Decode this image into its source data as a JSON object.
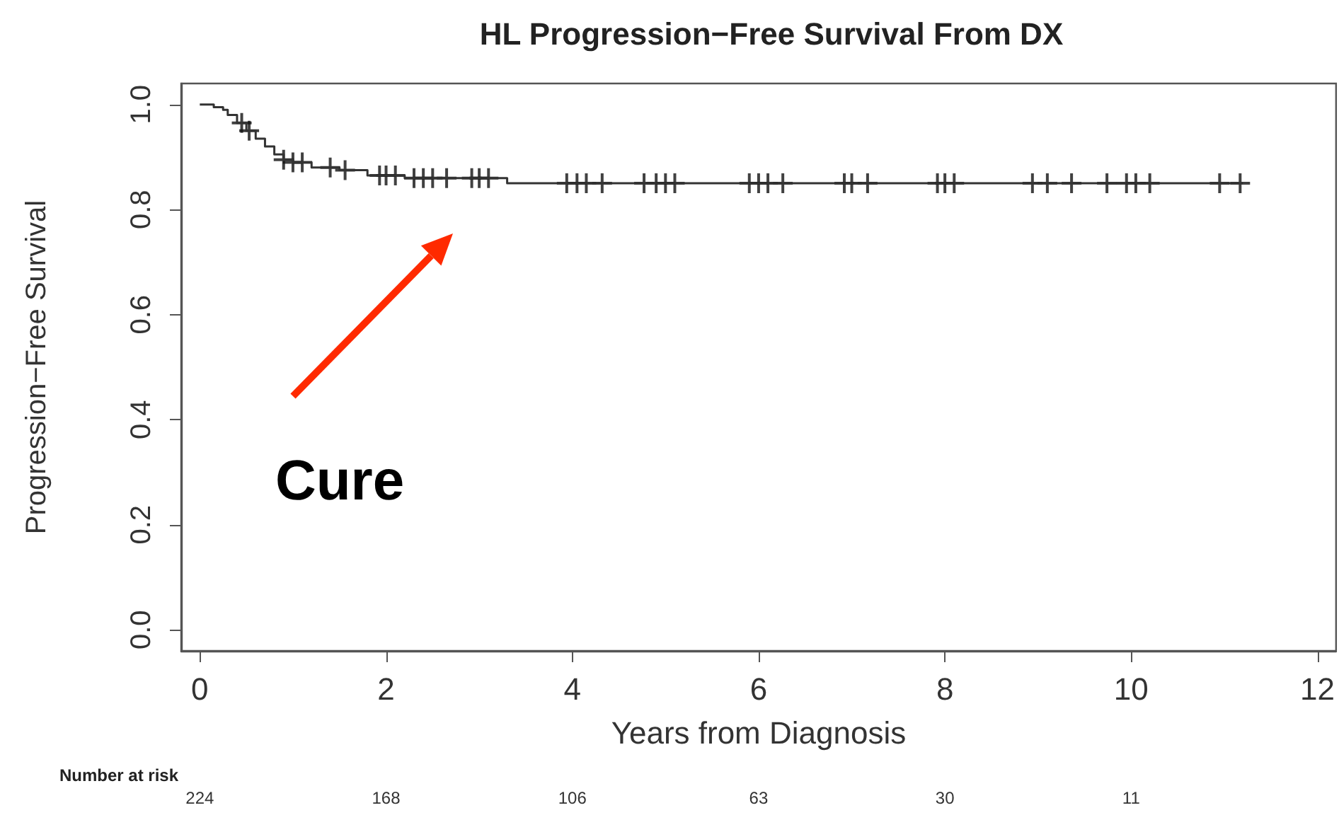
{
  "chart_data": {
    "type": "step",
    "title": "HL Progression−Free Survival From DX",
    "xlabel": "Years from Diagnosis",
    "ylabel": "Progression−Free Survival",
    "xlim": [
      -0.2,
      12.2
    ],
    "xticks": [
      0,
      2,
      4,
      6,
      8,
      10,
      12
    ],
    "ylim": [
      -0.04,
      1.04
    ],
    "yticks": [
      {
        "value": 0,
        "label": "0.0"
      },
      0.2,
      0.4,
      0.6,
      0.8,
      {
        "value": 1,
        "label": "1.0"
      }
    ],
    "series": [
      {
        "color": "#333333",
        "x": [
          0,
          0.15,
          0.25,
          0.3,
          0.4,
          0.5,
          0.6,
          0.7,
          0.8,
          0.9,
          1.0,
          1.2,
          1.5,
          1.8,
          2.2,
          3.3,
          11.2
        ],
        "values": [
          1,
          0.995,
          0.99,
          0.98,
          0.965,
          0.95,
          0.935,
          0.92,
          0.905,
          0.895,
          0.89,
          0.88,
          0.875,
          0.865,
          0.86,
          0.85,
          0.85
        ]
      },
      {
        "type": "scatter",
        "marker": "cross",
        "color": "#111111",
        "x": [
          0.45,
          0.53,
          0.9,
          1.0,
          1.1,
          1.4,
          1.56,
          1.93,
          2.0,
          2.1,
          2.3,
          2.4,
          2.5,
          2.65,
          2.92,
          3.0,
          3.1,
          3.94,
          4.05,
          4.15,
          4.32,
          4.77,
          4.9,
          5.0,
          5.1,
          5.9,
          6.0,
          6.1,
          6.26,
          6.92,
          7.0,
          7.17,
          7.92,
          8.0,
          8.1,
          8.94,
          9.1,
          9.36,
          9.74,
          9.95,
          10.05,
          10.2,
          10.95,
          11.17
        ],
        "values": [
          0.965,
          0.95,
          0.895,
          0.89,
          0.89,
          0.88,
          0.875,
          0.865,
          0.865,
          0.865,
          0.86,
          0.86,
          0.86,
          0.86,
          0.86,
          0.86,
          0.86,
          0.85,
          0.85,
          0.85,
          0.85,
          0.85,
          0.85,
          0.85,
          0.85,
          0.85,
          0.85,
          0.85,
          0.85,
          0.85,
          0.85,
          0.85,
          0.85,
          0.85,
          0.85,
          0.85,
          0.85,
          0.85,
          0.85,
          0.85,
          0.85,
          0.85,
          0.85,
          0.85
        ]
      }
    ],
    "annotations": [
      "Cure",
      "Number at risk",
      "224",
      "168",
      "106",
      "63",
      "30",
      "11"
    ]
  }
}
